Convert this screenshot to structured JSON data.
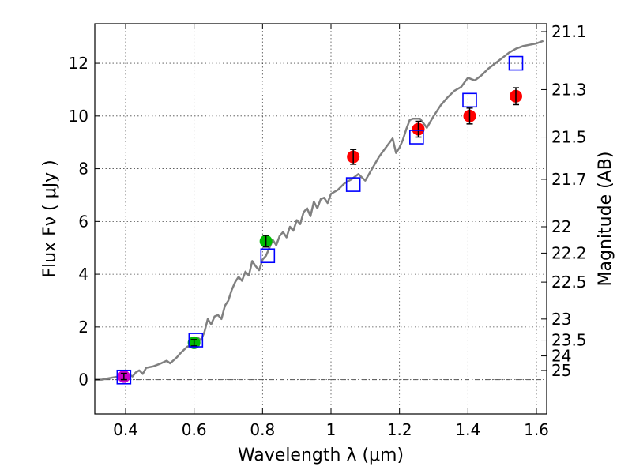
{
  "chart_data": {
    "type": "scatter",
    "xlabel": "Wavelength  λ (μm)",
    "ylabel_left": "Flux  Fν  ( μJy )",
    "ylabel_right": "Magnitude (AB)",
    "xlim": [
      0.31,
      1.63
    ],
    "ylim": [
      -1.3,
      13.5
    ],
    "x_ticks": [
      0.4,
      0.6,
      0.8,
      1.0,
      1.2,
      1.4,
      1.6
    ],
    "x_tick_labels": [
      "0.4",
      "0.6",
      "0.8",
      "1",
      "1.2",
      "1.4",
      "1.6"
    ],
    "y_ticks": [
      0,
      2,
      4,
      6,
      8,
      10,
      12
    ],
    "y_tick_labels": [
      "0",
      "2",
      "4",
      "6",
      "8",
      "10",
      "12"
    ],
    "right_ticks": [
      {
        "label": "21.1",
        "flux": 13.2
      },
      {
        "label": "21.3",
        "flux": 11.0
      },
      {
        "label": "21.5",
        "flux": 9.2
      },
      {
        "label": "21.7",
        "flux": 7.6
      },
      {
        "label": "22",
        "flux": 5.8
      },
      {
        "label": "22.2",
        "flux": 4.8
      },
      {
        "label": "22.5",
        "flux": 3.7
      },
      {
        "label": "23",
        "flux": 2.3
      },
      {
        "label": "23.5",
        "flux": 1.5
      },
      {
        "label": "24",
        "flux": 0.9
      },
      {
        "label": "25",
        "flux": 0.35
      }
    ],
    "grid": true,
    "colors": {
      "model": "#808080",
      "model_points": "#0000ff",
      "magenta": "#cc00cc",
      "green": "#00bb00",
      "red": "#ff0000",
      "error": "#000000",
      "zero_line": "#555555"
    },
    "model_sed": {
      "x": [
        0.31,
        0.33,
        0.35,
        0.37,
        0.39,
        0.41,
        0.42,
        0.43,
        0.44,
        0.45,
        0.46,
        0.48,
        0.5,
        0.52,
        0.53,
        0.55,
        0.56,
        0.58,
        0.6,
        0.61,
        0.62,
        0.63,
        0.64,
        0.65,
        0.66,
        0.67,
        0.68,
        0.69,
        0.7,
        0.71,
        0.72,
        0.73,
        0.74,
        0.75,
        0.76,
        0.77,
        0.78,
        0.79,
        0.8,
        0.81,
        0.82,
        0.83,
        0.84,
        0.85,
        0.86,
        0.87,
        0.88,
        0.89,
        0.9,
        0.91,
        0.92,
        0.93,
        0.94,
        0.95,
        0.96,
        0.97,
        0.98,
        0.99,
        1.0,
        1.02,
        1.04,
        1.06,
        1.08,
        1.1,
        1.12,
        1.14,
        1.16,
        1.18,
        1.19,
        1.2,
        1.21,
        1.22,
        1.23,
        1.24,
        1.26,
        1.28,
        1.3,
        1.32,
        1.34,
        1.36,
        1.38,
        1.4,
        1.42,
        1.44,
        1.46,
        1.48,
        1.5,
        1.52,
        1.54,
        1.56,
        1.58,
        1.6,
        1.62
      ],
      "y": [
        0.0,
        0.0,
        0.05,
        0.1,
        0.15,
        0.2,
        0.12,
        0.28,
        0.35,
        0.22,
        0.45,
        0.5,
        0.6,
        0.72,
        0.62,
        0.85,
        1.0,
        1.25,
        1.35,
        1.6,
        1.5,
        1.8,
        2.3,
        2.1,
        2.4,
        2.45,
        2.3,
        2.8,
        3.0,
        3.4,
        3.7,
        3.9,
        3.75,
        4.1,
        3.95,
        4.5,
        4.3,
        4.15,
        4.55,
        4.7,
        5.0,
        5.3,
        5.1,
        5.45,
        5.6,
        5.4,
        5.8,
        5.65,
        6.05,
        5.9,
        6.35,
        6.5,
        6.2,
        6.75,
        6.5,
        6.85,
        6.9,
        6.7,
        7.05,
        7.2,
        7.45,
        7.6,
        7.8,
        7.55,
        8.0,
        8.45,
        8.8,
        9.15,
        8.6,
        8.8,
        9.1,
        9.5,
        9.85,
        9.9,
        9.9,
        9.55,
        10.0,
        10.4,
        10.7,
        10.95,
        11.1,
        11.45,
        11.35,
        11.55,
        11.8,
        12.0,
        12.2,
        12.4,
        12.55,
        12.65,
        12.7,
        12.75,
        12.85
      ]
    },
    "model_points": {
      "name": "Model photometry",
      "x": [
        0.395,
        0.605,
        0.815,
        1.065,
        1.25,
        1.405,
        1.54
      ],
      "y": [
        0.1,
        1.5,
        4.7,
        7.4,
        9.2,
        10.6,
        12.0
      ]
    },
    "observed": [
      {
        "name": "Magenta band",
        "color_key": "magenta",
        "x": [
          0.395
        ],
        "y": [
          0.12
        ],
        "err": [
          0.12
        ]
      },
      {
        "name": "Green bands",
        "color_key": "green",
        "x": [
          0.6,
          0.81
        ],
        "y": [
          1.4,
          5.25
        ],
        "err": [
          0.12,
          0.22
        ]
      },
      {
        "name": "Red bands",
        "color_key": "red",
        "x": [
          1.065,
          1.255,
          1.405,
          1.54
        ],
        "y": [
          8.45,
          9.5,
          10.0,
          10.75
        ],
        "err": [
          0.28,
          0.3,
          0.3,
          0.32
        ]
      }
    ]
  }
}
